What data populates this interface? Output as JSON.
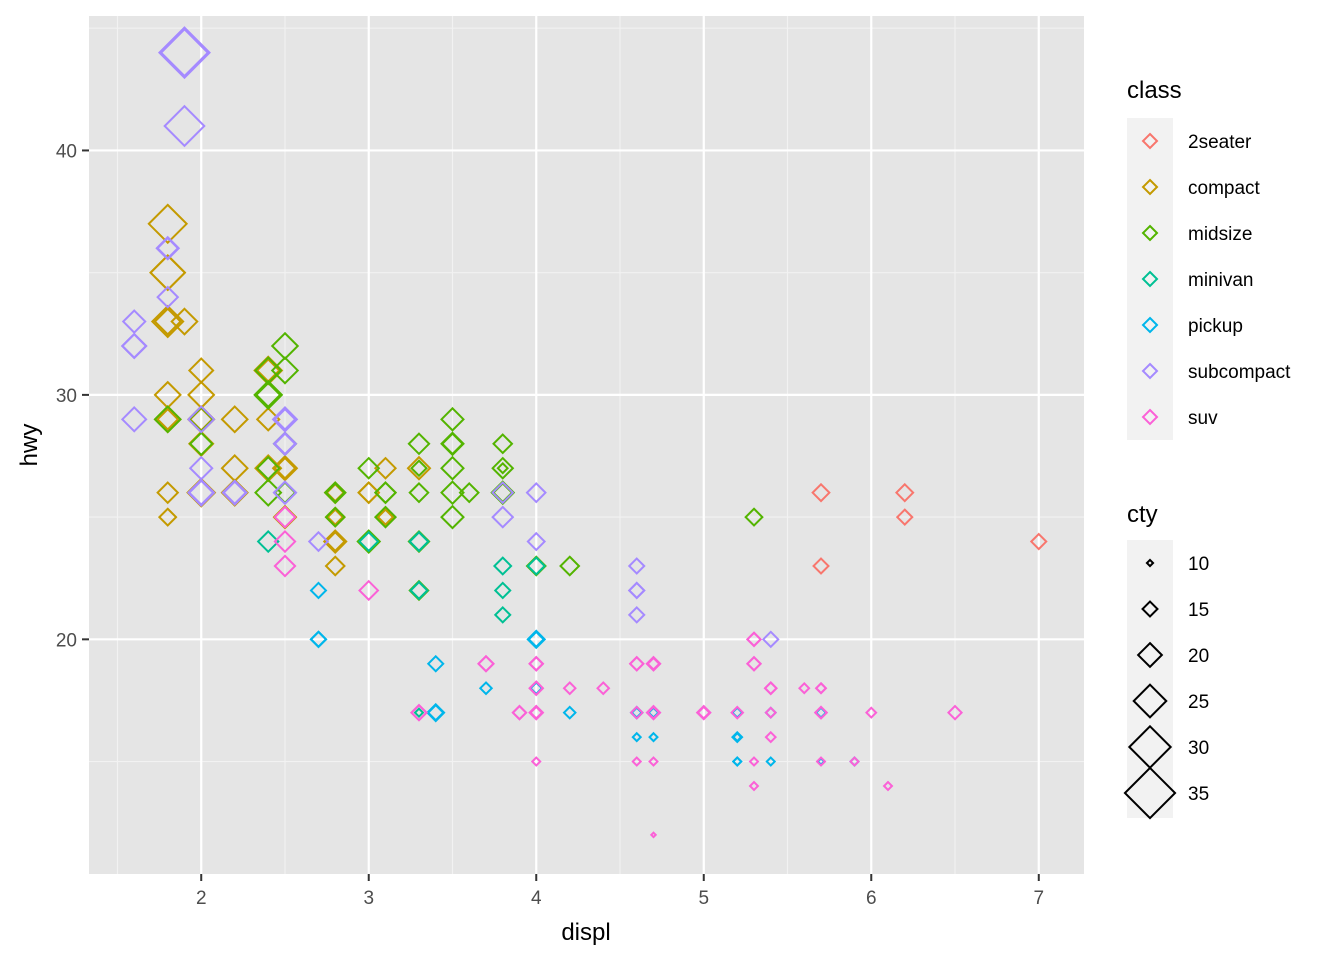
{
  "chart_data": {
    "type": "scatter",
    "xlabel": "displ",
    "ylabel": "hwy",
    "xlim": [
      1.33,
      7.27
    ],
    "ylim": [
      10.4,
      45.5
    ],
    "x_ticks": [
      2,
      3,
      4,
      5,
      6,
      7
    ],
    "y_ticks": [
      20,
      30,
      40
    ],
    "grid": true,
    "marker": "open-diamond",
    "colors": {
      "panel": "#e5e5e5",
      "grid": "#ffffff",
      "2seater": "#f8766d",
      "compact": "#c49a00",
      "midsize": "#53b400",
      "minivan": "#00c094",
      "pickup": "#00b6eb",
      "subcompact": "#a58aff",
      "suv": "#fb61d7"
    },
    "legend": {
      "placement": "right",
      "color": {
        "title": "class",
        "entries": [
          "2seater",
          "compact",
          "midsize",
          "minivan",
          "pickup",
          "subcompact",
          "suv"
        ]
      },
      "size": {
        "title": "cty",
        "entries": [
          10,
          15,
          20,
          25,
          30,
          35
        ]
      }
    },
    "series": [
      {
        "name": "2seater",
        "points": [
          [
            5.7,
            26,
            16
          ],
          [
            5.7,
            23,
            15
          ],
          [
            6.2,
            26,
            16
          ],
          [
            6.2,
            25,
            15
          ],
          [
            7.0,
            24,
            15
          ]
        ]
      },
      {
        "name": "compact",
        "points": [
          [
            1.8,
            29,
            18
          ],
          [
            1.8,
            29,
            21
          ],
          [
            2.0,
            31,
            20
          ],
          [
            2.0,
            30,
            21
          ],
          [
            2.8,
            26,
            16
          ],
          [
            2.8,
            26,
            18
          ],
          [
            3.1,
            27,
            18
          ],
          [
            1.8,
            26,
            18
          ],
          [
            1.8,
            25,
            16
          ],
          [
            2.0,
            28,
            20
          ],
          [
            2.0,
            29,
            19
          ],
          [
            2.8,
            25,
            15
          ],
          [
            2.8,
            25,
            17
          ],
          [
            3.1,
            25,
            17
          ],
          [
            3.1,
            25,
            15
          ],
          [
            2.2,
            29,
            21
          ],
          [
            2.2,
            27,
            21
          ],
          [
            2.4,
            31,
            21
          ],
          [
            2.4,
            31,
            22
          ],
          [
            3.0,
            26,
            18
          ],
          [
            3.0,
            26,
            18
          ],
          [
            3.3,
            27,
            19
          ],
          [
            1.8,
            33,
            24
          ],
          [
            1.8,
            35,
            26
          ],
          [
            1.8,
            37,
            28
          ],
          [
            1.8,
            35,
            26
          ],
          [
            2.0,
            29,
            21
          ],
          [
            2.0,
            29,
            20
          ],
          [
            2.5,
            25,
            19
          ],
          [
            2.5,
            27,
            18
          ],
          [
            2.5,
            27,
            20
          ],
          [
            2.2,
            26,
            21
          ],
          [
            2.4,
            31,
            19
          ],
          [
            2.4,
            29,
            19
          ],
          [
            2.4,
            27,
            21
          ],
          [
            2.5,
            29,
            19
          ],
          [
            2.8,
            23,
            17
          ],
          [
            2.8,
            24,
            17
          ],
          [
            2.8,
            24,
            19
          ],
          [
            1.8,
            30,
            21
          ],
          [
            1.9,
            33,
            21
          ],
          [
            2.0,
            29,
            21
          ],
          [
            2.5,
            27,
            19
          ],
          [
            2.0,
            26,
            21
          ],
          [
            2.0,
            26,
            22
          ],
          [
            1.8,
            33,
            21
          ]
        ]
      },
      {
        "name": "midsize",
        "points": [
          [
            2.4,
            30,
            22
          ],
          [
            2.4,
            26,
            21
          ],
          [
            3.1,
            26,
            18
          ],
          [
            3.5,
            29,
            19
          ],
          [
            3.6,
            26,
            17
          ],
          [
            3.1,
            25,
            18
          ],
          [
            3.8,
            27,
            18
          ],
          [
            3.8,
            26,
            17
          ],
          [
            3.8,
            26,
            19
          ],
          [
            5.3,
            25,
            16
          ],
          [
            2.5,
            28,
            19
          ],
          [
            2.5,
            26,
            18
          ],
          [
            3.5,
            28,
            19
          ],
          [
            3.5,
            26,
            19
          ],
          [
            3.5,
            25,
            19
          ],
          [
            3.3,
            28,
            18
          ],
          [
            3.8,
            28,
            17
          ],
          [
            2.4,
            31,
            21
          ],
          [
            2.4,
            30,
            20
          ],
          [
            2.5,
            32,
            21
          ],
          [
            2.5,
            31,
            21
          ],
          [
            3.3,
            24,
            18
          ],
          [
            3.3,
            22,
            17
          ],
          [
            3.0,
            24,
            19
          ],
          [
            2.8,
            26,
            17
          ],
          [
            2.8,
            25,
            17
          ],
          [
            3.0,
            27,
            18
          ],
          [
            3.1,
            26,
            18
          ],
          [
            3.5,
            28,
            18
          ],
          [
            3.5,
            27,
            19
          ],
          [
            1.8,
            29,
            21
          ],
          [
            2.0,
            28,
            19
          ],
          [
            2.0,
            29,
            20
          ],
          [
            2.8,
            26,
            18
          ],
          [
            3.3,
            26,
            17
          ],
          [
            3.3,
            27,
            15
          ],
          [
            3.8,
            27,
            12
          ],
          [
            4.0,
            23,
            17
          ],
          [
            4.2,
            23,
            17
          ],
          [
            2.4,
            27,
            19
          ]
        ]
      },
      {
        "name": "minivan",
        "points": [
          [
            2.4,
            24,
            18
          ],
          [
            3.0,
            24,
            17
          ],
          [
            3.3,
            22,
            16
          ],
          [
            3.3,
            22,
            16
          ],
          [
            3.3,
            24,
            17
          ],
          [
            3.3,
            24,
            17
          ],
          [
            3.3,
            17,
            11
          ],
          [
            3.8,
            22,
            15
          ],
          [
            3.8,
            21,
            15
          ],
          [
            3.8,
            23,
            16
          ],
          [
            4.0,
            23,
            16
          ]
        ]
      },
      {
        "name": "pickup",
        "points": [
          [
            5.2,
            16,
            11
          ],
          [
            5.2,
            16,
            11
          ],
          [
            5.7,
            17,
            12
          ],
          [
            5.9,
            15,
            11
          ],
          [
            4.7,
            17,
            12
          ],
          [
            4.7,
            16,
            11
          ],
          [
            4.7,
            17,
            12
          ],
          [
            5.2,
            15,
            11
          ],
          [
            5.7,
            15,
            10
          ],
          [
            4.6,
            16,
            11
          ],
          [
            5.2,
            17,
            12
          ],
          [
            5.4,
            15,
            11
          ],
          [
            5.4,
            17,
            12
          ],
          [
            4.6,
            17,
            12
          ],
          [
            4.0,
            20,
            15
          ],
          [
            4.0,
            18,
            13
          ],
          [
            4.6,
            17,
            13
          ],
          [
            2.7,
            20,
            15
          ],
          [
            2.7,
            20,
            15
          ],
          [
            2.7,
            22,
            15
          ],
          [
            3.4,
            17,
            15
          ],
          [
            3.4,
            19,
            15
          ],
          [
            4.0,
            20,
            15
          ],
          [
            4.0,
            18,
            13
          ],
          [
            3.7,
            18,
            13
          ],
          [
            4.7,
            17,
            13
          ],
          [
            4.2,
            17,
            13
          ],
          [
            5.2,
            15,
            11
          ],
          [
            5.2,
            16,
            12
          ],
          [
            4.0,
            20,
            16
          ],
          [
            4.0,
            20,
            16
          ],
          [
            2.7,
            20,
            15
          ],
          [
            3.4,
            17,
            16
          ]
        ]
      },
      {
        "name": "subcompact",
        "points": [
          [
            3.8,
            26,
            18
          ],
          [
            3.8,
            25,
            18
          ],
          [
            4.0,
            26,
            17
          ],
          [
            4.0,
            24,
            16
          ],
          [
            4.6,
            21,
            15
          ],
          [
            4.6,
            22,
            15
          ],
          [
            4.6,
            23,
            15
          ],
          [
            4.6,
            22,
            15
          ],
          [
            5.4,
            20,
            15
          ],
          [
            1.6,
            33,
            19
          ],
          [
            1.6,
            32,
            20
          ],
          [
            1.6,
            32,
            20
          ],
          [
            1.6,
            29,
            20
          ],
          [
            1.6,
            32,
            20
          ],
          [
            1.8,
            34,
            18
          ],
          [
            1.8,
            36,
            18
          ],
          [
            1.8,
            36,
            19
          ],
          [
            2.0,
            29,
            21
          ],
          [
            2.0,
            26,
            21
          ],
          [
            2.0,
            27,
            19
          ],
          [
            2.0,
            26,
            20
          ],
          [
            2.5,
            26,
            19
          ],
          [
            2.5,
            28,
            18
          ],
          [
            2.5,
            26,
            19
          ],
          [
            2.5,
            29,
            18
          ],
          [
            2.2,
            26,
            19
          ],
          [
            2.2,
            26,
            20
          ],
          [
            2.0,
            26,
            21
          ],
          [
            2.7,
            24,
            17
          ],
          [
            1.9,
            44,
            35
          ],
          [
            1.9,
            44,
            33
          ],
          [
            1.9,
            41,
            29
          ],
          [
            2.5,
            29,
            20
          ],
          [
            2.5,
            28,
            19
          ]
        ]
      },
      {
        "name": "suv",
        "points": [
          [
            5.3,
            20,
            14
          ],
          [
            5.3,
            15,
            11
          ],
          [
            5.3,
            20,
            14
          ],
          [
            5.7,
            17,
            13
          ],
          [
            6.0,
            17,
            12
          ],
          [
            5.7,
            18,
            12
          ],
          [
            6.5,
            17,
            14
          ],
          [
            3.7,
            19,
            15
          ],
          [
            3.7,
            19,
            15
          ],
          [
            3.9,
            17,
            14
          ],
          [
            3.9,
            17,
            14
          ],
          [
            4.7,
            19,
            14
          ],
          [
            4.7,
            19,
            14
          ],
          [
            4.7,
            12,
            9
          ],
          [
            5.2,
            17,
            13
          ],
          [
            5.7,
            17,
            13
          ],
          [
            5.9,
            15,
            11
          ],
          [
            4.7,
            15,
            11
          ],
          [
            4.7,
            17,
            13
          ],
          [
            4.0,
            19,
            14
          ],
          [
            4.0,
            19,
            14
          ],
          [
            4.6,
            19,
            14
          ],
          [
            5.0,
            17,
            13
          ],
          [
            4.2,
            18,
            13
          ],
          [
            4.4,
            18,
            13
          ],
          [
            4.6,
            17,
            13
          ],
          [
            5.4,
            18,
            13
          ],
          [
            5.4,
            17,
            12
          ],
          [
            4.0,
            17,
            14
          ],
          [
            4.0,
            18,
            14
          ],
          [
            4.0,
            17,
            13
          ],
          [
            4.0,
            15,
            11
          ],
          [
            4.6,
            15,
            11
          ],
          [
            5.0,
            17,
            14
          ],
          [
            5.4,
            16,
            12
          ],
          [
            5.6,
            18,
            12
          ],
          [
            3.3,
            17,
            15
          ],
          [
            3.3,
            17,
            15
          ],
          [
            3.3,
            17,
            15
          ],
          [
            4.0,
            18,
            14
          ],
          [
            4.7,
            17,
            14
          ],
          [
            5.7,
            18,
            12
          ],
          [
            6.1,
            14,
            11
          ],
          [
            5.3,
            19,
            14
          ],
          [
            5.3,
            14,
            11
          ],
          [
            5.7,
            15,
            11
          ],
          [
            2.5,
            24,
            18
          ],
          [
            2.5,
            23,
            18
          ],
          [
            2.5,
            25,
            18
          ],
          [
            3.0,
            22,
            17
          ],
          [
            4.0,
            17,
            14
          ],
          [
            4.0,
            19,
            14
          ],
          [
            4.6,
            19,
            14
          ],
          [
            5.4,
            18,
            13
          ],
          [
            5.3,
            19,
            14
          ],
          [
            4.7,
            19,
            13
          ]
        ]
      }
    ]
  }
}
